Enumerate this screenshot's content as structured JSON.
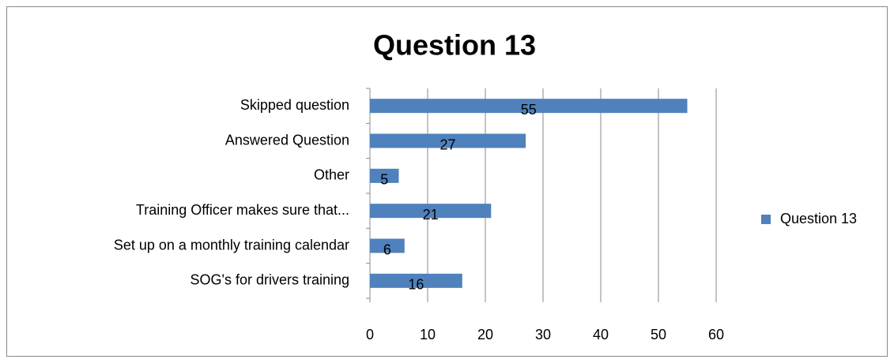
{
  "chart_data": {
    "type": "hbar",
    "title": "Question 13",
    "categories": [
      "Skipped question",
      "Answered Question",
      "Other",
      "Training Officer makes sure that...",
      "Set up on a monthly training calendar",
      "SOG's for drivers training"
    ],
    "series": [
      {
        "name": "Question 13",
        "color": "#4f81bd",
        "values": [
          55,
          27,
          5,
          21,
          6,
          16
        ]
      }
    ],
    "xlim": [
      0,
      60
    ],
    "xticks": [
      0,
      10,
      20,
      30,
      40,
      50,
      60
    ],
    "grid": true,
    "legend": "right"
  }
}
